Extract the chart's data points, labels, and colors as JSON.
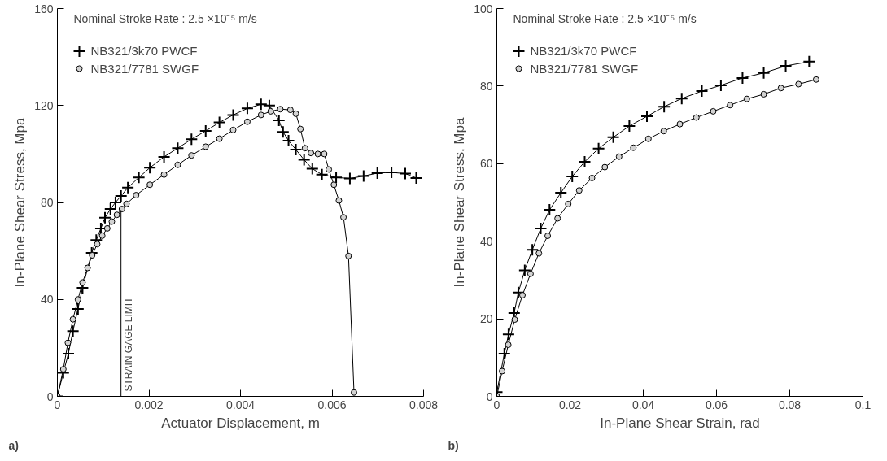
{
  "chart_data": [
    {
      "type": "line",
      "xlabel": "Actuator Displacement, m",
      "ylabel": "In-Plane Shear Stress, Mpa",
      "annotations": [
        "Nominal Stroke Rate : 2.5 ×10⁻⁵ m/s",
        "a)"
      ],
      "xlim": [
        0,
        0.008
      ],
      "ylim": [
        0,
        160
      ],
      "xticks": [
        0,
        0.002,
        0.004,
        0.006,
        0.008
      ],
      "yticks": [
        0,
        40,
        80,
        120,
        160
      ],
      "legend": "top left",
      "ref_lines": [
        {
          "axis": "x",
          "value": 0.00139,
          "label": "STRAIN GAGE LIMIT",
          "color": "#000000"
        }
      ],
      "series": [
        {
          "name": "NB321/3k70 PWCF",
          "color": "#000000",
          "marker": "cross",
          "x": [
            0,
            0.00013,
            0.00024,
            0.00034,
            0.00045,
            0.00055,
            0.00075,
            0.00085,
            0.00095,
            0.00104,
            0.00116,
            0.00127,
            0.00139,
            0.00154,
            0.00178,
            0.00202,
            0.00233,
            0.00263,
            0.00293,
            0.00324,
            0.00354,
            0.00384,
            0.00415,
            0.00445,
            0.00463,
            0.00484,
            0.00493,
            0.00505,
            0.00521,
            0.00539,
            0.00557,
            0.00578,
            0.00609,
            0.00639,
            0.00669,
            0.00699,
            0.0073,
            0.0076,
            0.00784
          ],
          "values": [
            0,
            9.7,
            17.6,
            26.9,
            36.1,
            44.8,
            59.2,
            64.5,
            69.3,
            73.7,
            77.3,
            80,
            82.7,
            86.1,
            90.3,
            94.3,
            98.8,
            102.4,
            106.1,
            109.5,
            113,
            116.1,
            118.8,
            120.5,
            120,
            113.9,
            109.1,
            105.5,
            101.8,
            97.6,
            93.9,
            91.5,
            90.3,
            89.9,
            90.9,
            92.1,
            92.4,
            91.9,
            90.1
          ]
        },
        {
          "name": "NB321/7781 SWGF",
          "color": "#d3d3d3",
          "marker": "circle",
          "x": [
            0,
            0.00013,
            0.00023,
            0.00034,
            0.00045,
            0.00055,
            0.00066,
            0.00076,
            0.00087,
            0.00098,
            0.00109,
            0.00119,
            0.0013,
            0.00141,
            0.00151,
            0.00172,
            0.00202,
            0.00233,
            0.00263,
            0.00293,
            0.00324,
            0.00354,
            0.00384,
            0.00415,
            0.00445,
            0.00466,
            0.00487,
            0.00509,
            0.00521,
            0.00531,
            0.00541,
            0.00554,
            0.00569,
            0.00583,
            0.00593,
            0.00604,
            0.00615,
            0.00625,
            0.00636,
            0.00648
          ],
          "values": [
            0,
            11.2,
            22.1,
            31.8,
            40,
            47,
            53,
            58.2,
            62.8,
            66.3,
            69.3,
            72.1,
            74.9,
            77.3,
            79.4,
            83,
            87.3,
            91.5,
            95.5,
            99.4,
            103,
            106.3,
            109.9,
            113.3,
            116.1,
            117.6,
            118.5,
            118.2,
            116.6,
            110.3,
            102.4,
            100.4,
            100,
            100,
            93.6,
            87.3,
            80.8,
            73.9,
            57.9,
            1.6
          ]
        }
      ]
    },
    {
      "type": "line",
      "xlabel": "In-Plane Shear Strain, rad",
      "ylabel": "In-Plane Shear Stress, Mpa",
      "annotations": [
        "Nominal Stroke Rate : 2.5 ×10⁻⁵ m/s",
        "b)"
      ],
      "xlim": [
        0,
        0.1
      ],
      "ylim": [
        0,
        100
      ],
      "xticks": [
        0,
        0.02,
        0.04,
        0.06,
        0.08,
        0.1
      ],
      "yticks": [
        0,
        20,
        40,
        60,
        80,
        100
      ],
      "legend": "top left",
      "series": [
        {
          "name": "NB321/3k70 PWCF",
          "color": "#000000",
          "marker": "cross",
          "x": [
            0,
            0.00206,
            0.0032,
            0.00473,
            0.00588,
            0.00763,
            0.0097,
            0.012,
            0.0144,
            0.0175,
            0.0206,
            0.024,
            0.0278,
            0.0318,
            0.0362,
            0.041,
            0.0457,
            0.0505,
            0.056,
            0.0612,
            0.0671,
            0.0729,
            0.0789,
            0.0853
          ],
          "values": [
            1.1,
            11,
            16,
            21.5,
            26.8,
            32.5,
            37.8,
            43.3,
            48.1,
            52.5,
            56.7,
            60.5,
            63.9,
            66.8,
            69.7,
            72.2,
            74.7,
            76.8,
            78.7,
            80.2,
            82.1,
            83.4,
            85.2,
            86.3
          ]
        },
        {
          "name": "NB321/7781 SWGF",
          "color": "#d3d3d3",
          "marker": "circle",
          "x": [
            0,
            0.00145,
            0.00313,
            0.00489,
            0.007,
            0.0092,
            0.0115,
            0.0139,
            0.0166,
            0.0195,
            0.0225,
            0.026,
            0.0295,
            0.0334,
            0.0373,
            0.0414,
            0.0456,
            0.05,
            0.0545,
            0.0591,
            0.0637,
            0.0683,
            0.0729,
            0.0776,
            0.0824,
            0.0872
          ],
          "values": [
            0,
            6.5,
            13.3,
            19.8,
            26.1,
            31.6,
            36.9,
            41.4,
            45.9,
            49.6,
            53.1,
            56.3,
            59.1,
            61.8,
            64.1,
            66.4,
            68.4,
            70.2,
            71.9,
            73.5,
            75.1,
            76.7,
            77.9,
            79.5,
            80.5,
            81.7
          ]
        }
      ]
    }
  ]
}
